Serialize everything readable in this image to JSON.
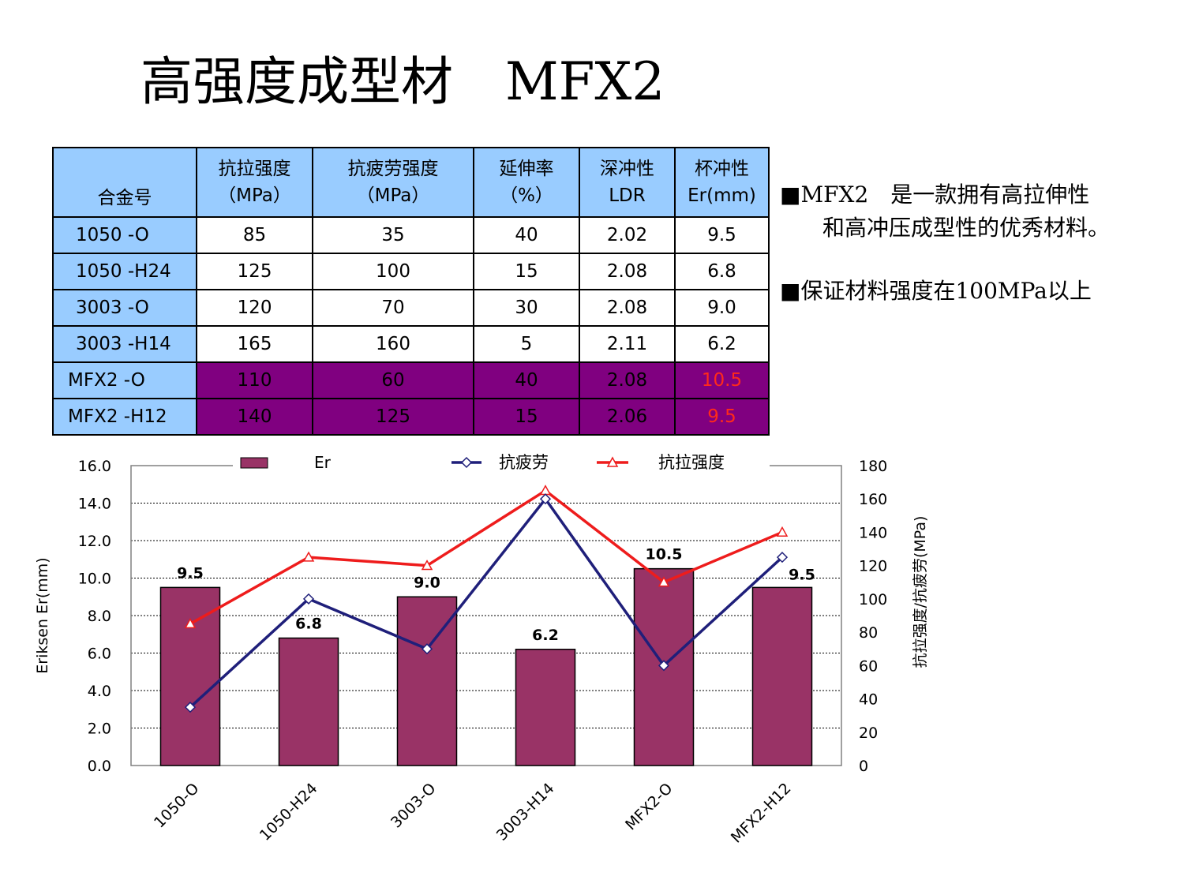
{
  "title": "高强度成型材　MFX2",
  "table": {
    "headers": [
      {
        "lines": [
          "合金号"
        ]
      },
      {
        "lines": [
          "抗拉强度",
          "（MPa）"
        ]
      },
      {
        "lines": [
          "抗疲劳强度",
          "（MPa）"
        ]
      },
      {
        "lines": [
          "延伸率",
          "（%）"
        ]
      },
      {
        "lines": [
          "深冲性",
          "LDR"
        ]
      },
      {
        "lines": [
          "杯冲性",
          "Er(mm)"
        ]
      }
    ],
    "rows": [
      {
        "alloy": "1050 -O",
        "tensile": "85",
        "fatigue": "35",
        "elongation": "40",
        "ldr": "2.02",
        "er": "9.5",
        "highlight": false
      },
      {
        "alloy": "1050 -H24",
        "tensile": "125",
        "fatigue": "100",
        "elongation": "15",
        "ldr": "2.08",
        "er": "6.8",
        "highlight": false
      },
      {
        "alloy": "3003 -O",
        "tensile": "120",
        "fatigue": "70",
        "elongation": "30",
        "ldr": "2.08",
        "er": "9.0",
        "highlight": false
      },
      {
        "alloy": "3003 -H14",
        "tensile": "165",
        "fatigue": "160",
        "elongation": "5",
        "ldr": "2.11",
        "er": "6.2",
        "highlight": false
      },
      {
        "alloy": "MFX2 -O",
        "tensile": "110",
        "fatigue": "60",
        "elongation": "40",
        "ldr": "2.08",
        "er": "10.5",
        "highlight": true
      },
      {
        "alloy": "MFX2 -H12",
        "tensile": "140",
        "fatigue": "125",
        "elongation": "15",
        "ldr": "2.06",
        "er": "9.5",
        "highlight": true
      }
    ],
    "colors": {
      "header": "#99ccff",
      "highlight_fill": "#800080",
      "highlight_er_text": "#ff2a1a"
    }
  },
  "notes": {
    "line1": "■MFX2　是一款拥有高拉伸性",
    "line2": "和高冲压成型性的优秀材料。",
    "line3": "■保证材料强度在100MPa以上"
  },
  "chart_data": {
    "type": "bar",
    "categories": [
      "1050-O",
      "1050-H24",
      "3003-O",
      "3003-H14",
      "MFX2-O",
      "MFX2-H12"
    ],
    "series": [
      {
        "name": "Er",
        "type": "bar",
        "axis": "left",
        "values": [
          9.5,
          6.8,
          9.0,
          6.2,
          10.5,
          9.5
        ],
        "labels": [
          "9.5",
          "6.8",
          "9.0",
          "6.2",
          "10.5",
          "9.5"
        ],
        "color": "#993366"
      },
      {
        "name": "抗疲劳",
        "type": "line",
        "axis": "right",
        "marker": "diamond",
        "values": [
          35,
          100,
          70,
          160,
          60,
          125
        ],
        "color": "#1f1f7a"
      },
      {
        "name": "抗拉强度",
        "type": "line",
        "axis": "right",
        "marker": "triangle",
        "values": [
          85,
          125,
          120,
          165,
          110,
          140
        ],
        "color": "#ee1c1c"
      }
    ],
    "ylabel": "Eriksen Er(mm)",
    "ylabel_right": "抗拉强度/抗疲劳(MPa)",
    "ylim": [
      0,
      16
    ],
    "ylim_right": [
      0,
      180
    ],
    "yticks": [
      "0.0",
      "2.0",
      "4.0",
      "6.0",
      "8.0",
      "10.0",
      "12.0",
      "14.0",
      "16.0"
    ],
    "yticks_right": [
      "0",
      "20",
      "40",
      "60",
      "80",
      "100",
      "120",
      "140",
      "160",
      "180"
    ],
    "grid": true,
    "legend_position": "top"
  }
}
